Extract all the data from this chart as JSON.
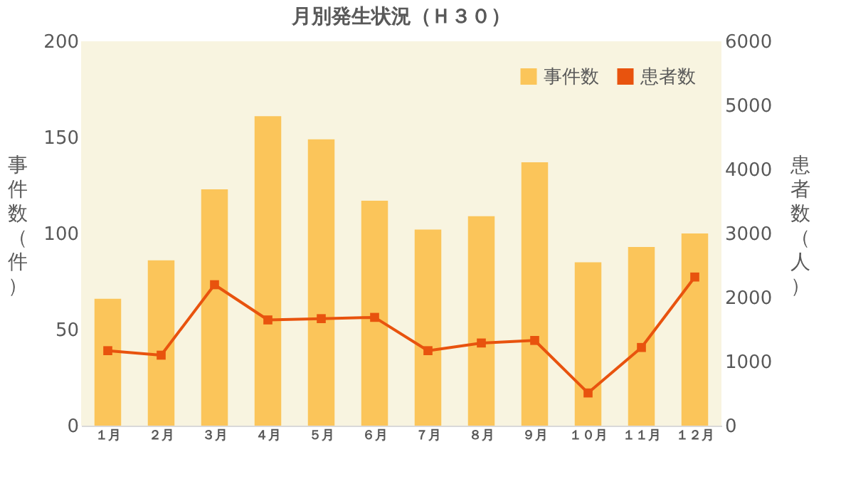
{
  "chart_data": {
    "type": "bar",
    "title": "月別発生状況（Ｈ３０）",
    "categories": [
      "１月",
      "２月",
      "３月",
      "４月",
      "５月",
      "６月",
      "７月",
      "８月",
      "９月",
      "１０月",
      "１１月",
      "１２月"
    ],
    "series": [
      {
        "name": "事件数",
        "color": "#fbc55a",
        "values": [
          66,
          86,
          123,
          161,
          149,
          117,
          102,
          109,
          137,
          85,
          93,
          100
        ]
      },
      {
        "name": "患者数",
        "type": "line",
        "axis": "y2",
        "color": "#e8530e",
        "marker": "square",
        "values": [
          1170,
          1100,
          2200,
          1650,
          1670,
          1690,
          1170,
          1290,
          1330,
          510,
          1220,
          2320
        ]
      }
    ],
    "ylabel": "事件数（件）",
    "y2label": "患者数（人）",
    "ylim": [
      0,
      200
    ],
    "yticks": [
      0,
      50,
      100,
      150,
      200
    ],
    "y2lim": [
      0,
      6000
    ],
    "y2ticks": [
      0,
      1000,
      2000,
      3000,
      4000,
      5000,
      6000
    ],
    "grid": false,
    "legend": "top right"
  }
}
